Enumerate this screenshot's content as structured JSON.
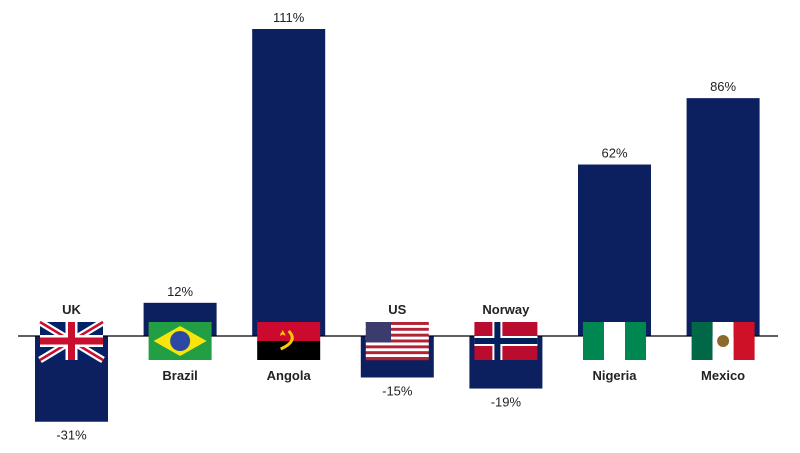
{
  "chart_data": {
    "type": "bar",
    "title": "",
    "xlabel": "",
    "ylabel": "",
    "ylim": [
      -31,
      111
    ],
    "categories": [
      "UK",
      "Brazil",
      "Angola",
      "US",
      "Norway",
      "Nigeria",
      "Mexico"
    ],
    "values": [
      -31,
      12,
      111,
      -15,
      -19,
      62,
      86
    ],
    "value_labels": [
      "-31%",
      "12%",
      "111%",
      "-15%",
      "-19%",
      "62%",
      "86%"
    ],
    "flag_icons": [
      "uk-flag-icon",
      "brazil-flag-icon",
      "angola-flag-icon",
      "us-flag-icon",
      "norway-flag-icon",
      "nigeria-flag-icon",
      "mexico-flag-icon"
    ],
    "grid": false,
    "legend": "none"
  },
  "colors": {
    "bar": "#0c1f5e",
    "axis": "#000000"
  }
}
